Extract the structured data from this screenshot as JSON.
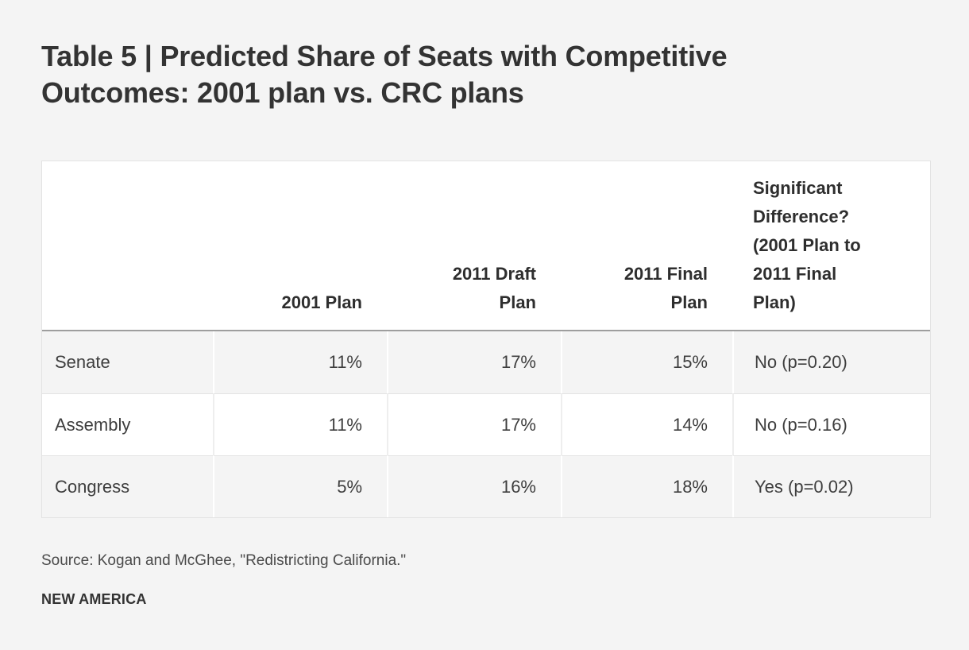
{
  "title": "Table 5 | Predicted Share of Seats with Competitive Outcomes: 2001 plan vs. CRC plans",
  "table": {
    "columns": [
      "",
      "2001 Plan",
      "2011 Draft Plan",
      "2011 Final Plan",
      "Significant Difference? (2001 Plan to 2011 Final Plan)"
    ],
    "rows": [
      {
        "cells": [
          "Senate",
          "11%",
          "17%",
          "15%",
          "No (p=0.20)"
        ]
      },
      {
        "cells": [
          "Assembly",
          "11%",
          "17%",
          "14%",
          "No (p=0.16)"
        ]
      },
      {
        "cells": [
          "Congress",
          "5%",
          "16%",
          "18%",
          "Yes (p=0.02)"
        ]
      }
    ]
  },
  "footer": {
    "source": "Source: Kogan and McGhee, \"Redistricting California.\"",
    "brand": "NEW AMERICA"
  },
  "colors": {
    "page_bg": "#f4f4f4",
    "card_bg": "#ffffff",
    "stripe_bg": "#f4f4f4",
    "header_rule": "#9e9e9e",
    "grid_line": "#e3e3e3",
    "title_text": "#333333",
    "body_text": "#3e3e3e"
  },
  "chart_data": {
    "type": "table",
    "title": "Table 5 | Predicted Share of Seats with Competitive Outcomes: 2001 plan vs. CRC plans",
    "columns": [
      "",
      "2001 Plan",
      "2011 Draft Plan",
      "2011 Final Plan",
      "Significant Difference? (2001 Plan to 2011 Final Plan)"
    ],
    "rows": [
      [
        "Senate",
        "11%",
        "17%",
        "15%",
        "No (p=0.20)"
      ],
      [
        "Assembly",
        "11%",
        "17%",
        "14%",
        "No (p=0.16)"
      ],
      [
        "Congress",
        "5%",
        "16%",
        "18%",
        "Yes (p=0.02)"
      ]
    ],
    "values_numeric": {
      "categories": [
        "Senate",
        "Assembly",
        "Congress"
      ],
      "series": [
        {
          "name": "2001 Plan",
          "values": [
            11,
            11,
            5
          ]
        },
        {
          "name": "2011 Draft Plan",
          "values": [
            17,
            17,
            16
          ]
        },
        {
          "name": "2011 Final Plan",
          "values": [
            15,
            14,
            18
          ]
        }
      ],
      "unit": "%"
    },
    "significance": [
      {
        "category": "Senate",
        "significant": "No",
        "p": 0.2
      },
      {
        "category": "Assembly",
        "significant": "No",
        "p": 0.16
      },
      {
        "category": "Congress",
        "significant": "Yes",
        "p": 0.02
      }
    ],
    "source": "Source: Kogan and McGhee, \"Redistricting California.\"",
    "legend_position": "none",
    "grid": "row-and-column-lines"
  }
}
